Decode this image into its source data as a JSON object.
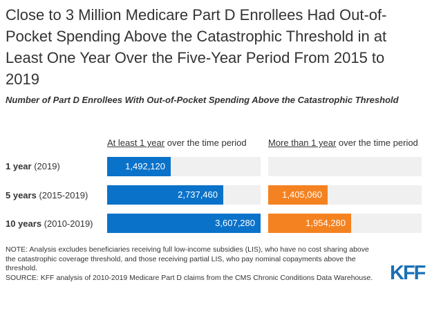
{
  "title": "Close to 3 Million Medicare Part D Enrollees Had Out-of-Pocket Spending Above the Catastrophic Threshold in at Least One Year Over the Five-Year Period From 2015 to 2019",
  "subtitle": "Number of Part D Enrollees With Out-of-Pocket Spending Above the Catastrophic Threshold",
  "columns": [
    {
      "underlined": "At least 1 year",
      "rest": " over the time period",
      "color": "#0a72c9"
    },
    {
      "underlined": "More than 1 year",
      "rest": " over the time period",
      "color": "#f58220"
    }
  ],
  "rows": [
    {
      "bold": "1 year",
      "rest": " (2019)"
    },
    {
      "bold": "5 years",
      "rest": " (2015-2019)"
    },
    {
      "bold": "10 years",
      "rest": " (2010-2019)"
    }
  ],
  "chart_data": {
    "type": "bar",
    "orientation": "horizontal",
    "categories": [
      "1 year (2019)",
      "5 years (2015-2019)",
      "10 years (2010-2019)"
    ],
    "series": [
      {
        "name": "At least 1 year over the time period",
        "values": [
          1492120,
          2737460,
          3607280
        ],
        "labels": [
          "1,492,120",
          "2,737,460",
          "3,607,280"
        ]
      },
      {
        "name": "More than 1 year over the time period",
        "values": [
          null,
          1405060,
          1954280
        ],
        "labels": [
          "",
          "1,405,060",
          "1,954,280"
        ]
      }
    ],
    "xlim": [
      0,
      3607280
    ],
    "grid": false,
    "legend": "column headers"
  },
  "note": "NOTE: Analysis excludes beneficiaries receiving full low-income subsidies (LIS), who have no cost sharing above the catastrophic coverage threshold, and those receiving partial LIS, who pay nominal copayments above the threshold.",
  "source": "SOURCE: KFF analysis of 2010-2019 Medicare Part D claims from the CMS Chronic Conditions Data Warehouse.",
  "logo": "KFF",
  "colors": {
    "track": "#f0f0f0",
    "logo": "#1a6fb5"
  }
}
